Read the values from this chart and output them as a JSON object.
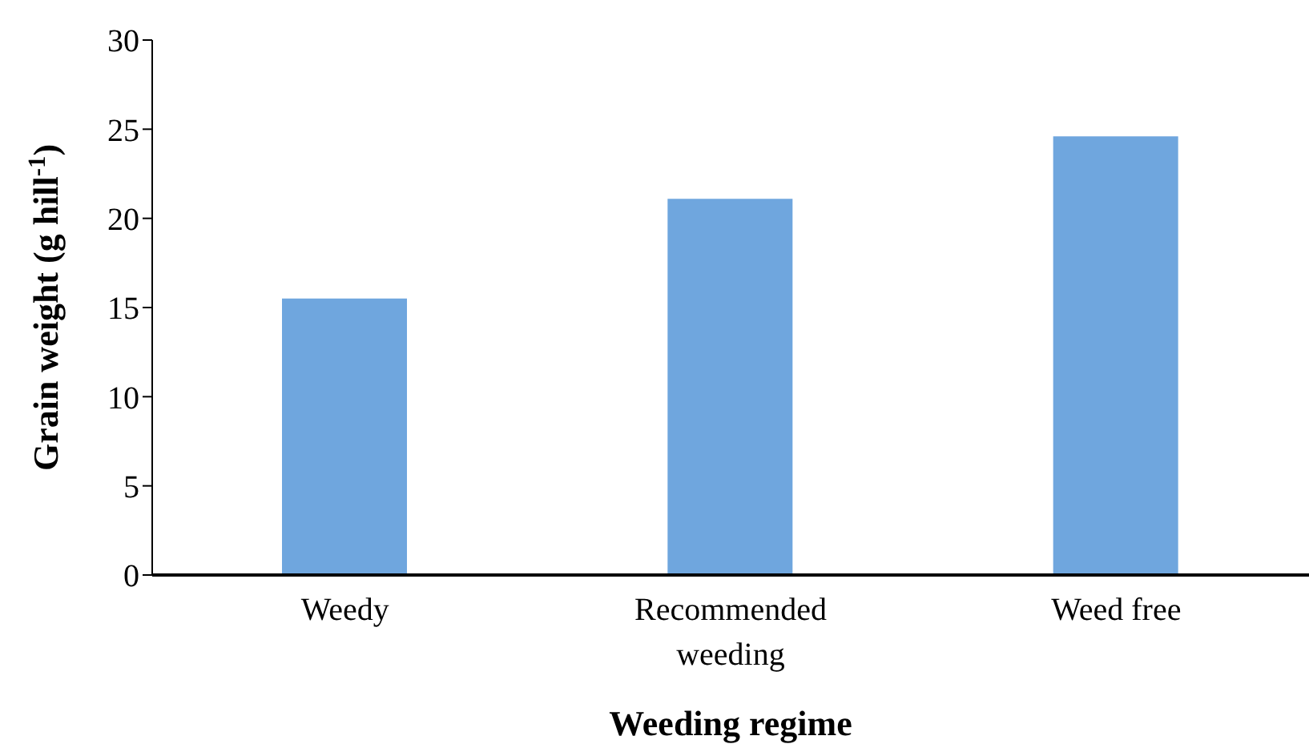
{
  "chart_data": {
    "type": "bar",
    "xlabel": "Weeding regime",
    "ylabel": "Grain weight (g hill$^{-1}$)",
    "categories": [
      "Weedy",
      "Recommended weeding",
      "Weed free"
    ],
    "values": [
      15.5,
      21.1,
      24.6
    ],
    "color": "#6fa6de",
    "ylim": [
      0,
      30
    ],
    "yticks": [
      0,
      5,
      10,
      15,
      20,
      25,
      30
    ],
    "grid": false
  }
}
